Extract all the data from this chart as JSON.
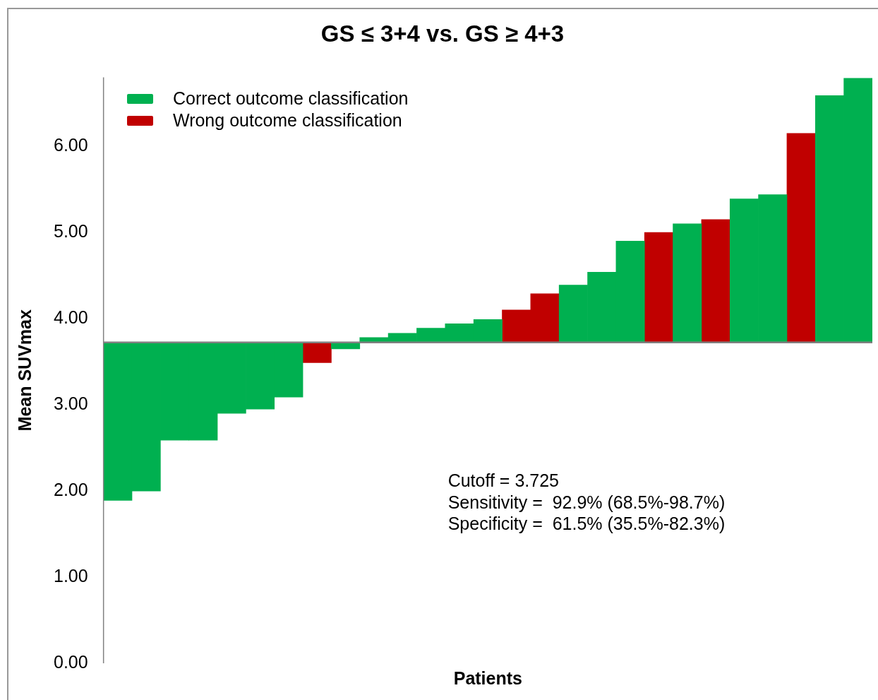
{
  "chart_data": {
    "type": "bar",
    "title": "GS ≤ 3+4 vs. GS ≥ 4+3",
    "xlabel": "Patients",
    "ylabel": "Mean SUVmax",
    "categories": [
      null,
      null,
      null,
      null,
      null,
      null,
      null,
      null,
      null,
      null,
      null,
      null,
      null,
      null,
      null,
      null,
      null,
      null,
      null,
      null,
      null,
      null,
      null,
      null,
      null,
      null,
      null
    ],
    "series": [
      {
        "name": "Correct outcome classification",
        "color": "#00b050",
        "base": [
          3.725,
          3.725,
          3.725,
          3.725,
          3.725,
          3.725,
          3.725,
          null,
          3.725,
          3.725,
          3.725,
          3.725,
          3.725,
          3.725,
          null,
          null,
          3.725,
          3.725,
          3.725,
          null,
          3.725,
          null,
          3.725,
          3.725,
          null,
          3.725,
          3.725
        ],
        "values": [
          -1.835,
          -1.725,
          -1.135,
          -1.135,
          -0.825,
          -0.775,
          -0.635,
          null,
          -0.075,
          0.055,
          0.105,
          0.165,
          0.215,
          0.265,
          null,
          null,
          0.665,
          0.815,
          1.175,
          null,
          1.375,
          null,
          1.665,
          1.715,
          null,
          2.865,
          3.065
        ]
      },
      {
        "name": "Wrong outcome classification",
        "color": "#c00000",
        "base": [
          null,
          null,
          null,
          null,
          null,
          null,
          null,
          3.725,
          null,
          null,
          null,
          null,
          null,
          null,
          3.725,
          3.725,
          null,
          null,
          null,
          3.725,
          null,
          3.725,
          null,
          null,
          3.725,
          null,
          null
        ],
        "values": [
          null,
          null,
          null,
          null,
          null,
          null,
          null,
          -0.235,
          null,
          null,
          null,
          null,
          null,
          null,
          0.375,
          0.565,
          null,
          null,
          null,
          1.275,
          null,
          1.425,
          null,
          null,
          2.425,
          null,
          null
        ]
      }
    ],
    "ylim": [
      0,
      6.8
    ],
    "yticks": [
      {
        "value": 0,
        "label": "0.00"
      },
      {
        "value": 1,
        "label": "1.00"
      },
      {
        "value": 2,
        "label": "2.00"
      },
      {
        "value": 3,
        "label": "3.00"
      },
      {
        "value": 4,
        "label": "4.00"
      },
      {
        "value": 5,
        "label": "5.00"
      },
      {
        "value": 6,
        "label": "6.00"
      }
    ],
    "tick_labels": "y",
    "grid": false,
    "legend": "top left",
    "ref_lines": [
      {
        "axis": "y",
        "value": 3.725,
        "color": "#808080"
      }
    ],
    "annotations": [
      "Cutoff = 3.725",
      "Sensitivity =  92.9% (68.5%-98.7%)",
      "Specificity =  61.5% (35.5%-82.3%)"
    ]
  }
}
